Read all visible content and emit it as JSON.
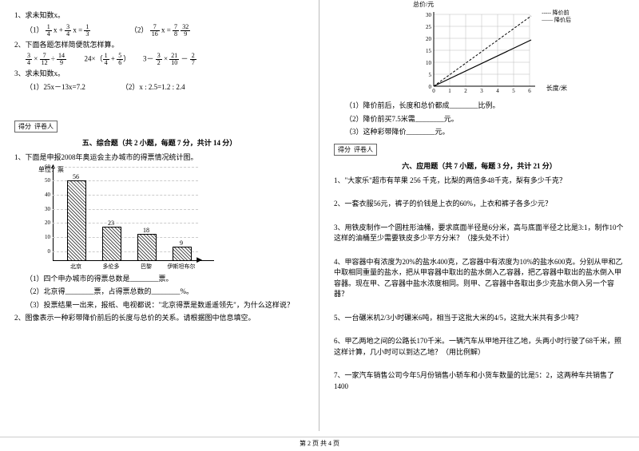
{
  "left": {
    "q1": "1、求未知数x。",
    "q1a": "（1）",
    "q1b": "（2）",
    "q2": "2、下面各题怎样简便就怎样算。",
    "q3": "3、求未知数x。",
    "q3a": "（1）25x－13x=7.2",
    "q3b": "（2）x : 2.5=1.2 : 2.4",
    "score": "得分",
    "judge": "评卷人",
    "sec5": "五、综合题（共 2 小题，每题 7 分，共计 14 分）",
    "q5_1": "1、下面是申报2008年奥运会主办城市的得票情况统计图。",
    "unit": "单位：票",
    "cities": [
      "北京",
      "多伦多",
      "巴黎",
      "伊斯坦布尔"
    ],
    "vals": [
      56,
      23,
      18,
      9
    ],
    "yticks": [
      0,
      10,
      20,
      30,
      40,
      50,
      60
    ],
    "q5_1a": "（1）四个申办城市的得票总数是________票。",
    "q5_1b": "（2）北京得________票，占得票总数的________%。",
    "q5_1c": "（3）投票结果一出来，报纸、电视都说：\"北京得票是数遥遥领先\"，为什么这样说？",
    "q5_2": "2、图像表示一种彩带降价前后的长度与总价的关系。请根据图中信息填空。"
  },
  "right": {
    "legend_before": "降价前",
    "legend_after": "降价后",
    "ylabel": "总价/元",
    "xlabel": "长度/米",
    "xt": [
      0,
      1,
      2,
      3,
      4,
      5,
      6
    ],
    "yt": [
      0,
      5,
      10,
      15,
      20,
      25,
      30
    ],
    "r1": "（1）降价前后，长度和总价都成________比例。",
    "r2": "（2）降价前买7.5米需________元。",
    "r3": "（3）这种彩带降价________元。",
    "score": "得分",
    "judge": "评卷人",
    "sec6": "六、应用题（共 7 小题，每题 3 分，共计 21 分）",
    "a1": "1、\"大家乐\"超市有苹果 256 千克，比梨的两倍多48千克，梨有多少千克？",
    "a2": "2、一套衣服56元，裤子的价钱是上衣的60%，上衣和裤子各多少元？",
    "a3": "3、用铁皮制作一个圆柱形油桶，要求底面半径是6分米，高与底面半径之比是3:1，制作10个这样的油桶至少需要铁皮多少平方分米？（接头处不计）",
    "a4": "4、甲容器中有浓度为20%的盐水400克，乙容器中有浓度为10%的盐水600克。分别从甲和乙中取相同重量的盐水，把从甲容器中取出的盐水倒入乙容器，把乙容器中取出的盐水倒入甲容器。现在甲、乙容器中盐水浓度相同。则甲、乙容器中各取出多少克盐水倒入另一个容器？",
    "a5": "5、一台碾米机2/3小时碾米6吨，相当于这批大米的4/5，这批大米共有多少吨？",
    "a6": "6、甲乙两地之间的公路长170千米。一辆汽车从甲地开往乙地，头两小时行驶了68千米，照这样计算，几小时可以到达乙地？（用比例解）",
    "a7": "7、一家汽车销售公司今年5月份销售小轿车和小货车数量的比是5：2，这两种车共销售了1400"
  },
  "foot": "第 2 页 共 4 页"
}
